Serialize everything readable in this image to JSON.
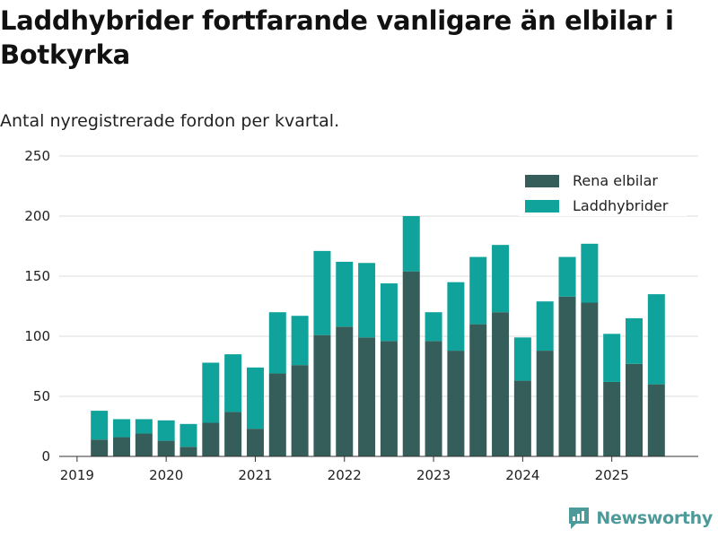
{
  "header": {
    "title": "Laddhybrider fortfarande vanligare än elbilar i Botkyrka",
    "subtitle": "Antal nyregistrerade fordon per kvartal."
  },
  "brand": {
    "name": "Newsworthy"
  },
  "colors": {
    "bev": "#355e5a",
    "phev": "#0fa39b",
    "grid": "#dddddd",
    "axis": "#333333",
    "brand": "#4d9a9a"
  },
  "chart_data": {
    "type": "bar",
    "stacked": true,
    "title": "Laddhybrider fortfarande vanligare än elbilar i Botkyrka",
    "subtitle": "Antal nyregistrerade fordon per kvartal.",
    "xlabel": "",
    "ylabel": "",
    "ylim": [
      0,
      250
    ],
    "yticks": [
      0,
      50,
      100,
      150,
      200,
      250
    ],
    "xticks": [
      {
        "label": "2019",
        "at": 2019
      },
      {
        "label": "2020",
        "at": 2020
      },
      {
        "label": "2021",
        "at": 2021
      },
      {
        "label": "2022",
        "at": 2022
      },
      {
        "label": "2023",
        "at": 2023
      },
      {
        "label": "2024",
        "at": 2024
      },
      {
        "label": "2025",
        "at": 2025
      }
    ],
    "xlim": [
      2018.8,
      2025.97
    ],
    "categories": [
      "2019 Q2",
      "2019 Q3",
      "2019 Q4",
      "2020 Q1",
      "2020 Q2",
      "2020 Q3",
      "2020 Q4",
      "2021 Q1",
      "2021 Q2",
      "2021 Q3",
      "2021 Q4",
      "2022 Q1",
      "2022 Q2",
      "2022 Q3",
      "2022 Q4",
      "2023 Q1",
      "2023 Q2",
      "2023 Q3",
      "2023 Q4",
      "2024 Q1",
      "2024 Q2",
      "2024 Q3",
      "2024 Q4",
      "2025 Q1",
      "2025 Q2",
      "2025 Q3"
    ],
    "x": [
      2019.25,
      2019.5,
      2019.75,
      2020.0,
      2020.25,
      2020.5,
      2020.75,
      2021.0,
      2021.25,
      2021.5,
      2021.75,
      2022.0,
      2022.25,
      2022.5,
      2022.75,
      2023.0,
      2023.25,
      2023.5,
      2023.75,
      2024.0,
      2024.25,
      2024.5,
      2024.75,
      2025.0,
      2025.25,
      2025.5
    ],
    "series": [
      {
        "name": "Rena elbilar",
        "values": [
          14,
          16,
          19,
          13,
          8,
          28,
          37,
          23,
          69,
          76,
          101,
          108,
          99,
          96,
          154,
          96,
          88,
          110,
          120,
          63,
          88,
          133,
          128,
          62,
          77,
          60
        ]
      },
      {
        "name": "Laddhybrider",
        "values": [
          24,
          15,
          12,
          17,
          19,
          50,
          48,
          51,
          51,
          41,
          70,
          54,
          62,
          48,
          46,
          24,
          57,
          56,
          56,
          36,
          41,
          33,
          49,
          40,
          38,
          75
        ]
      }
    ],
    "legend": {
      "position": "top-right"
    },
    "grid": {
      "y": true,
      "x": false
    }
  }
}
